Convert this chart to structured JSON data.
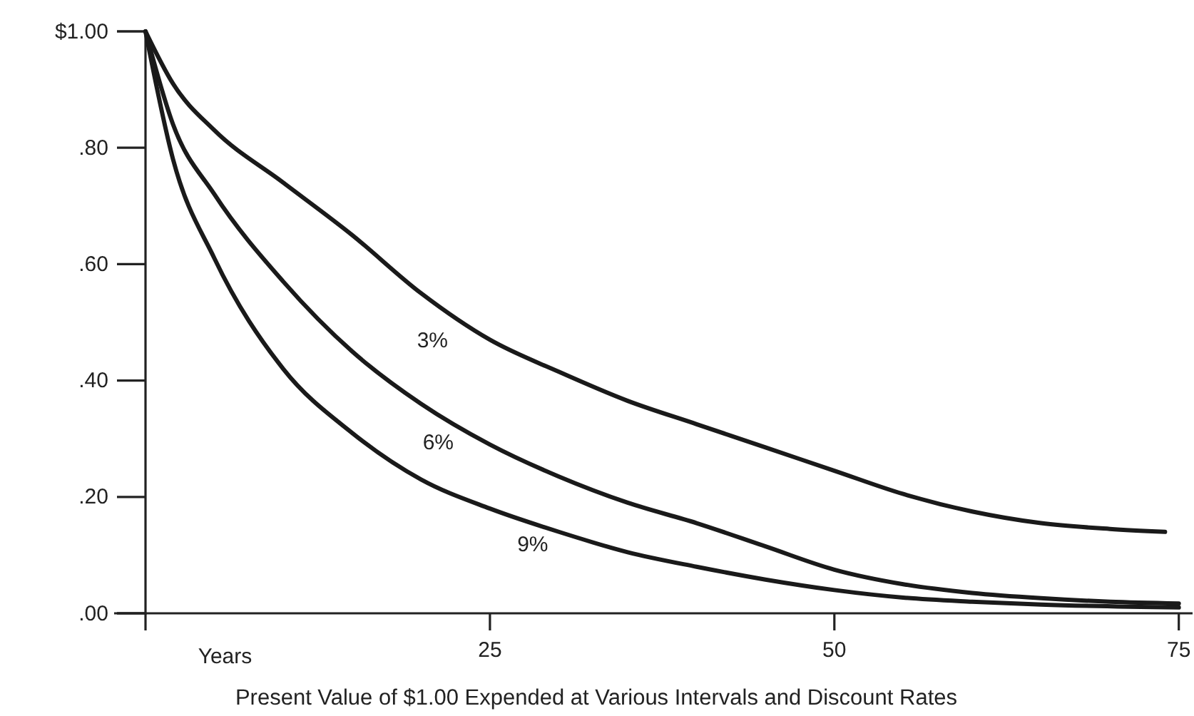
{
  "chart_data": {
    "type": "line",
    "title": "Present Value of $1.00 Expended at Various Intervals and Discount Rates",
    "xlabel": "Years",
    "xlim": [
      0,
      76
    ],
    "xticks": [
      {
        "value": 0,
        "label": null
      },
      25,
      50,
      75
    ],
    "ylim": [
      0,
      1
    ],
    "yticks": [
      {
        "value": 0,
        "label": ".00"
      },
      {
        "value": 0.2,
        "label": ".20"
      },
      {
        "value": 0.4,
        "label": ".40"
      },
      {
        "value": 0.6,
        "label": ".60"
      },
      {
        "value": 0.8,
        "label": ".80"
      },
      {
        "value": 1,
        "label": "$1.00"
      }
    ],
    "grid": false,
    "legend": false,
    "marker": "none",
    "line_style": "solid",
    "series": [
      {
        "name": "3%",
        "color": "#1a1a1a",
        "x": [
          0,
          2,
          5,
          10,
          15,
          20,
          25,
          30,
          35,
          40,
          45,
          50,
          55,
          60,
          65,
          70,
          74
        ],
        "values": [
          1,
          0.91,
          0.83,
          0.74,
          0.65,
          0.55,
          0.47,
          0.415,
          0.365,
          0.325,
          0.285,
          0.245,
          0.205,
          0.175,
          0.155,
          0.145,
          0.14
        ]
      },
      {
        "name": "6%",
        "color": "#1a1a1a",
        "x": [
          0,
          2,
          5,
          10,
          15,
          20,
          25,
          30,
          35,
          40,
          45,
          50,
          55,
          60,
          65,
          70,
          75
        ],
        "values": [
          1,
          0.84,
          0.72,
          0.57,
          0.45,
          0.36,
          0.29,
          0.235,
          0.19,
          0.155,
          0.115,
          0.075,
          0.05,
          0.035,
          0.026,
          0.02,
          0.017
        ]
      },
      {
        "name": "9%",
        "color": "#1a1a1a",
        "x": [
          0,
          2,
          5,
          10,
          15,
          20,
          25,
          30,
          35,
          40,
          45,
          50,
          55,
          60,
          65,
          75
        ],
        "values": [
          1,
          0.78,
          0.61,
          0.42,
          0.31,
          0.23,
          0.18,
          0.14,
          0.105,
          0.08,
          0.058,
          0.04,
          0.027,
          0.02,
          0.015,
          0.01
        ]
      }
    ]
  }
}
